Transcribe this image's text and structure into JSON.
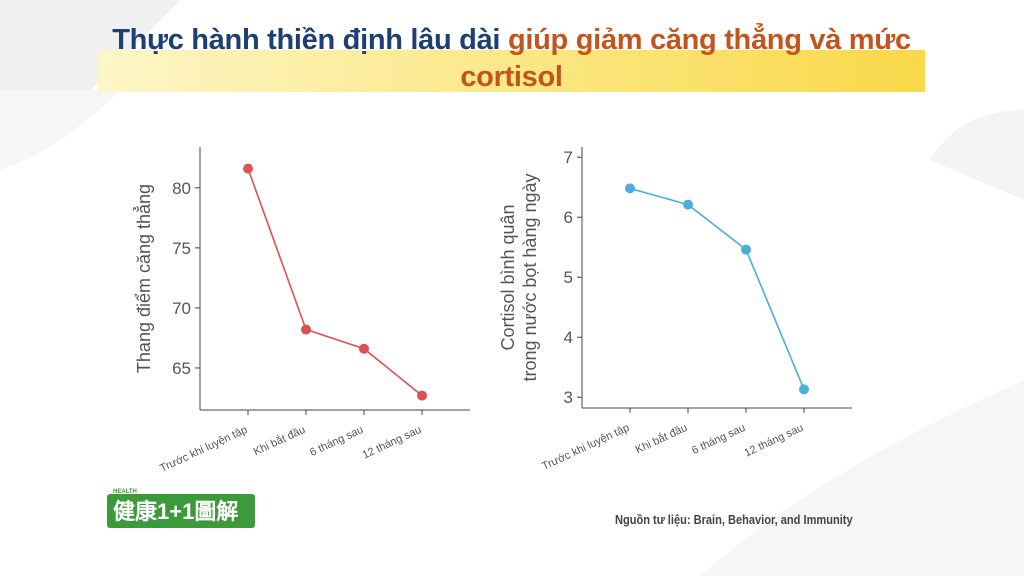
{
  "header": {
    "title": [
      "Thực hành thiền định lâu dài",
      "giúp giảm căng thẳng và mức cortisol"
    ]
  },
  "chart_data": [
    {
      "type": "line",
      "y_label": [
        "Thang điểm căng thẳng"
      ],
      "categories": [
        "Trước khi luyện tập",
        "Khi bắt đầu",
        "6 tháng sau",
        "12 tháng sau"
      ],
      "series": [
        {
          "color": "#d9534f",
          "values": [
            81.6,
            68.2,
            66.6,
            62.7
          ]
        }
      ],
      "ylim": [
        61.5,
        83.4
      ],
      "yticks": [
        65,
        70,
        75,
        80
      ]
    },
    {
      "type": "line",
      "y_label": [
        "Cortisol bình quân",
        "trong nước bọt hàng ngày"
      ],
      "categories": [
        "Trước khi luyện tập",
        "Khi bắt đầu",
        "6 tháng sau",
        "12 tháng sau"
      ],
      "series": [
        {
          "color": "#4aaed8",
          "values": [
            6.48,
            6.21,
            5.46,
            3.13
          ]
        }
      ],
      "ylim": [
        2.82,
        7.17
      ],
      "yticks": [
        3,
        4,
        5,
        6,
        7
      ]
    }
  ],
  "logo": {
    "tag": "HEALTH",
    "text": "健康1+1圖解"
  },
  "source": "Nguồn tư liệu: Brain, Behavior, and Immunity"
}
